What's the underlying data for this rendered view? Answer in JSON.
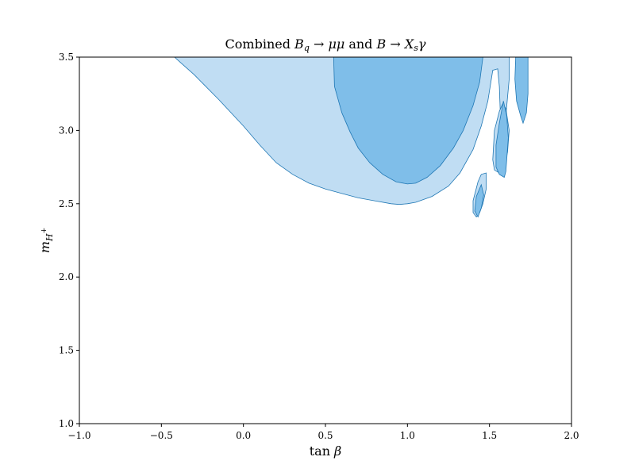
{
  "chart_data": {
    "type": "area",
    "title": "Combined Bₑ → μμ and B → Xₛγ",
    "title_parts": {
      "prefix": "Combined ",
      "b1": "B",
      "sub_q": "q",
      "arrow1": " → ",
      "mumu": "μμ",
      "and": " and ",
      "b2": "B",
      "arrow2": " → ",
      "x": "X",
      "sub_s": "s",
      "gamma": "γ"
    },
    "xlabel": "tan β",
    "xlabel_parts": {
      "tan": "tan",
      "beta": "β"
    },
    "ylabel": "m_{H⁺}",
    "ylabel_parts": {
      "m": "m",
      "sub": "H",
      "sup": "+"
    },
    "xlim": [
      -1.0,
      2.0
    ],
    "ylim": [
      1.0,
      3.5
    ],
    "x_ticks": [
      -1.0,
      -0.5,
      0.0,
      0.5,
      1.0,
      1.5,
      2.0
    ],
    "x_tick_labels": [
      "−1.0",
      "−0.5",
      "0.0",
      "0.5",
      "1.0",
      "1.5",
      "2.0"
    ],
    "y_ticks": [
      1.0,
      1.5,
      2.0,
      2.5,
      3.0,
      3.5
    ],
    "y_tick_labels": [
      "1.0",
      "1.5",
      "2.0",
      "2.5",
      "3.0",
      "3.5"
    ],
    "grid": false,
    "colors": {
      "outer_fill": "#c0ddf3",
      "inner_fill": "#7fbee9",
      "edge": "#1f77b4"
    },
    "regions": [
      {
        "level": "outer",
        "points": [
          [
            -0.42,
            3.5
          ],
          [
            -0.38,
            3.46
          ],
          [
            -0.3,
            3.38
          ],
          [
            -0.15,
            3.21
          ],
          [
            0.0,
            3.03
          ],
          [
            0.1,
            2.9
          ],
          [
            0.2,
            2.78
          ],
          [
            0.3,
            2.7
          ],
          [
            0.4,
            2.64
          ],
          [
            0.5,
            2.6
          ],
          [
            0.6,
            2.57
          ],
          [
            0.7,
            2.54
          ],
          [
            0.8,
            2.52
          ],
          [
            0.9,
            2.5
          ],
          [
            0.95,
            2.495
          ],
          [
            1.0,
            2.5
          ],
          [
            1.05,
            2.51
          ],
          [
            1.15,
            2.55
          ],
          [
            1.25,
            2.62
          ],
          [
            1.32,
            2.71
          ],
          [
            1.4,
            2.87
          ],
          [
            1.45,
            3.03
          ],
          [
            1.49,
            3.2
          ],
          [
            1.52,
            3.41
          ],
          [
            1.55,
            3.42
          ],
          [
            1.56,
            3.3
          ],
          [
            1.57,
            3.0
          ],
          [
            1.6,
            3.1
          ],
          [
            1.62,
            3.35
          ],
          [
            1.62,
            3.5
          ]
        ]
      },
      {
        "level": "inner",
        "points": [
          [
            0.55,
            3.5
          ],
          [
            0.555,
            3.3
          ],
          [
            0.6,
            3.12
          ],
          [
            0.65,
            2.99
          ],
          [
            0.7,
            2.88
          ],
          [
            0.77,
            2.78
          ],
          [
            0.85,
            2.7
          ],
          [
            0.93,
            2.65
          ],
          [
            1.0,
            2.635
          ],
          [
            1.05,
            2.64
          ],
          [
            1.12,
            2.68
          ],
          [
            1.2,
            2.76
          ],
          [
            1.28,
            2.88
          ],
          [
            1.34,
            3.0
          ],
          [
            1.4,
            3.17
          ],
          [
            1.44,
            3.33
          ],
          [
            1.46,
            3.5
          ]
        ]
      },
      {
        "level": "outer",
        "points": [
          [
            1.42,
            2.41
          ],
          [
            1.4,
            2.44
          ],
          [
            1.4,
            2.52
          ],
          [
            1.43,
            2.65
          ],
          [
            1.45,
            2.7
          ],
          [
            1.48,
            2.71
          ],
          [
            1.48,
            2.6
          ],
          [
            1.46,
            2.5
          ],
          [
            1.44,
            2.44
          ]
        ]
      },
      {
        "level": "inner",
        "points": [
          [
            1.43,
            2.41
          ],
          [
            1.41,
            2.45
          ],
          [
            1.42,
            2.55
          ],
          [
            1.45,
            2.63
          ],
          [
            1.465,
            2.56
          ],
          [
            1.45,
            2.47
          ]
        ]
      },
      {
        "level": "outer",
        "points": [
          [
            1.56,
            2.71
          ],
          [
            1.53,
            2.73
          ],
          [
            1.52,
            2.8
          ],
          [
            1.53,
            3.0
          ],
          [
            1.56,
            3.13
          ],
          [
            1.58,
            3.18
          ],
          [
            1.6,
            3.15
          ],
          [
            1.62,
            3.0
          ],
          [
            1.61,
            2.85
          ],
          [
            1.59,
            2.76
          ]
        ]
      },
      {
        "level": "inner",
        "points": [
          [
            1.59,
            2.68
          ],
          [
            1.56,
            2.7
          ],
          [
            1.54,
            2.75
          ],
          [
            1.54,
            2.9
          ],
          [
            1.56,
            3.05
          ],
          [
            1.585,
            3.2
          ],
          [
            1.605,
            3.1
          ],
          [
            1.615,
            2.95
          ],
          [
            1.605,
            2.8
          ],
          [
            1.6,
            2.72
          ]
        ]
      },
      {
        "level": "inner",
        "points": [
          [
            1.66,
            3.5
          ],
          [
            1.655,
            3.35
          ],
          [
            1.665,
            3.2
          ],
          [
            1.69,
            3.1
          ],
          [
            1.705,
            3.05
          ],
          [
            1.725,
            3.12
          ],
          [
            1.735,
            3.25
          ],
          [
            1.735,
            3.5
          ]
        ]
      }
    ]
  }
}
